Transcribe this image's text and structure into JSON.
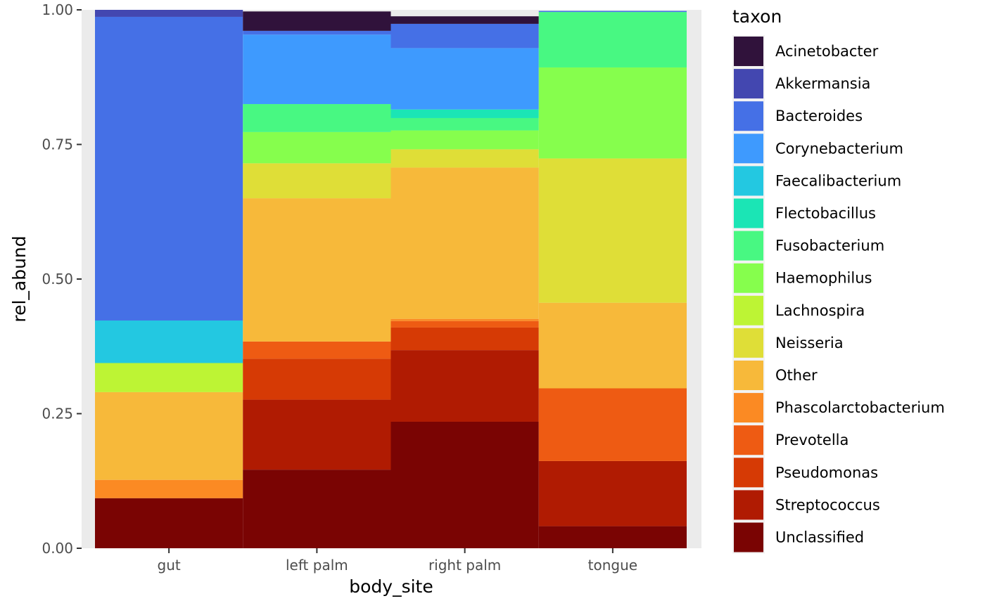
{
  "chart_data": {
    "type": "bar",
    "stacked": true,
    "xlabel": "body_site",
    "ylabel": "rel_abund",
    "ylim": [
      0,
      1
    ],
    "y_ticks": [
      "0.00",
      "0.25",
      "0.50",
      "0.75",
      "1.00"
    ],
    "y_tick_values": [
      0,
      0.25,
      0.5,
      0.75,
      1.0
    ],
    "grid": false,
    "panel_background": "#ebebeb",
    "legend": {
      "title": "taxon",
      "placement": "right"
    },
    "categories": [
      "gut",
      "left palm",
      "right palm",
      "tongue"
    ],
    "series": [
      {
        "name": "Unclassified",
        "color": "#7a0403",
        "values": [
          0.093,
          0.146,
          0.235,
          0.041
        ]
      },
      {
        "name": "Streptococcus",
        "color": "#b01b02",
        "values": [
          0.0,
          0.13,
          0.133,
          0.121
        ]
      },
      {
        "name": "Pseudomonas",
        "color": "#d63a05",
        "values": [
          0.0,
          0.076,
          0.042,
          0.0
        ]
      },
      {
        "name": "Prevotella",
        "color": "#ee5b13",
        "values": [
          0.0,
          0.032,
          0.012,
          0.135
        ]
      },
      {
        "name": "Phascolarctobacterium",
        "color": "#fb8a23",
        "values": [
          0.034,
          0.0,
          0.004,
          0.0
        ]
      },
      {
        "name": "Other",
        "color": "#f7b93a",
        "values": [
          0.163,
          0.266,
          0.281,
          0.159
        ]
      },
      {
        "name": "Neisseria",
        "color": "#dfde37",
        "values": [
          0.0,
          0.065,
          0.034,
          0.268
        ]
      },
      {
        "name": "Lachnospira",
        "color": "#bdf434",
        "values": [
          0.054,
          0.0,
          0.0,
          0.0
        ]
      },
      {
        "name": "Haemophilus",
        "color": "#86fe4d",
        "values": [
          0.0,
          0.058,
          0.035,
          0.169
        ]
      },
      {
        "name": "Fusobacterium",
        "color": "#48f882",
        "values": [
          0.0,
          0.052,
          0.023,
          0.103
        ]
      },
      {
        "name": "Flectobacillus",
        "color": "#1be5b5",
        "values": [
          0.0,
          0.0,
          0.016,
          0.0
        ]
      },
      {
        "name": "Faecalibacterium",
        "color": "#23c8e1",
        "values": [
          0.079,
          0.0,
          0.0,
          0.0
        ]
      },
      {
        "name": "Corynebacterium",
        "color": "#3e9afe",
        "values": [
          0.0,
          0.129,
          0.114,
          0.0
        ]
      },
      {
        "name": "Bacteroides",
        "color": "#4570e6",
        "values": [
          0.564,
          0.007,
          0.045,
          0.002
        ]
      },
      {
        "name": "Akkermansia",
        "color": "#4347b0",
        "values": [
          0.013,
          0.0,
          0.0,
          0.0
        ]
      },
      {
        "name": "Acinetobacter",
        "color": "#30123b",
        "values": [
          0.0,
          0.036,
          0.014,
          0.0
        ]
      }
    ]
  }
}
